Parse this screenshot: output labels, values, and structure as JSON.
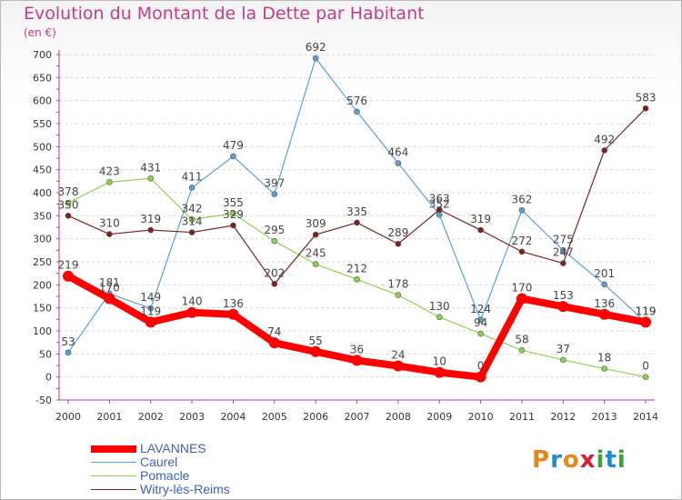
{
  "header": {
    "title": "Evolution du Montant de la Dette par Habitant",
    "unit": "(en €)"
  },
  "logo": {
    "letters": [
      "P",
      "r",
      "o",
      "x",
      "i",
      "t",
      "i"
    ],
    "colors": [
      "#e8861a",
      "#1f8bd0",
      "#e8861a",
      "#d81e33",
      "#3aa536",
      "#1f8bd0",
      "#3aa536"
    ]
  },
  "chart_data": {
    "type": "line",
    "x": [
      "2000",
      "2001",
      "2002",
      "2003",
      "2004",
      "2005",
      "2006",
      "2007",
      "2008",
      "2009",
      "2010",
      "2011",
      "2012",
      "2013",
      "2014"
    ],
    "ylim": [
      -50,
      700
    ],
    "yticks": [
      -50,
      0,
      50,
      100,
      150,
      200,
      250,
      300,
      350,
      400,
      450,
      500,
      550,
      600,
      650,
      700
    ],
    "grid": true,
    "legend_position": "bottom-left",
    "series": [
      {
        "name": "LAVANNES",
        "color": "#ff0000",
        "values": [
          219,
          170,
          119,
          140,
          136,
          74,
          55,
          36,
          24,
          10,
          0,
          170,
          153,
          136,
          119
        ]
      },
      {
        "name": "Caurel",
        "color": "#5b9fd6",
        "values": [
          53,
          181,
          149,
          411,
          479,
          397,
          692,
          576,
          464,
          352,
          124,
          362,
          275,
          201,
          119
        ]
      },
      {
        "name": "Pomacle",
        "color": "#8bd34a",
        "values": [
          378,
          423,
          431,
          342,
          355,
          295,
          245,
          212,
          178,
          130,
          94,
          58,
          37,
          18,
          0
        ]
      },
      {
        "name": "Witry-lès-Reims",
        "color": "#7a2222",
        "values": [
          350,
          310,
          319,
          314,
          329,
          202,
          309,
          335,
          289,
          363,
          319,
          272,
          247,
          492,
          583
        ]
      }
    ]
  }
}
